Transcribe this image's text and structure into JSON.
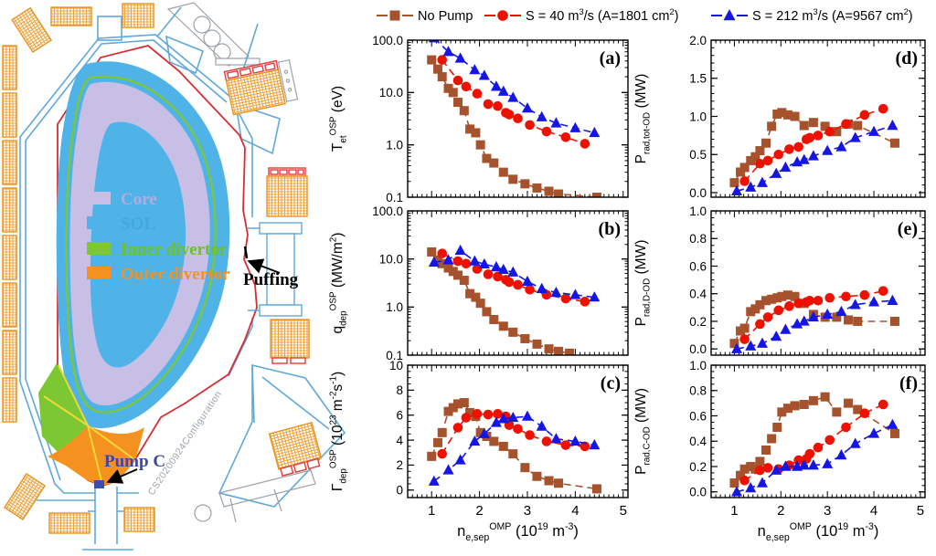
{
  "diagram": {
    "legend": [
      {
        "label": "Core",
        "color": "#C8BFE7",
        "text_color": "#B6A9DF"
      },
      {
        "label": "SOL",
        "color": "#4FB3E8",
        "text_color": "#3FA9E0"
      },
      {
        "label": "Inner divertor",
        "color": "#7DC832",
        "text_color": "#6CC226"
      },
      {
        "label": "Outer divertor",
        "color": "#F5921F",
        "text_color": "#F5921F"
      }
    ],
    "annotations": {
      "puffing": "Puffing",
      "pump": "Pump C",
      "watermark": "CS20200924Configuration"
    }
  },
  "series_legend": [
    {
      "name": "No Pump",
      "color": "#A5522D",
      "marker": "square"
    },
    {
      "name": "S = 40 m^{3}/s (A=1801 cm^{2})",
      "color": "#EE1100",
      "marker": "circle"
    },
    {
      "name": "S = 212 m^{3}/s (A=9567 cm^{2})",
      "color": "#1515E6",
      "marker": "triangle"
    }
  ],
  "xlabel": "n_{e,sep}^{OMP} (10^{19} m^{-3})",
  "xlim": [
    0.5,
    5.1
  ],
  "xticks": [
    1,
    2,
    3,
    4,
    5
  ],
  "xtick_labels": [
    "1",
    "2",
    "3",
    "4",
    "5"
  ],
  "chart_data": [
    {
      "id": "a",
      "panel": "(a)",
      "type": "scatter",
      "yscale": "log",
      "ylim": [
        0.1,
        100
      ],
      "yminor": 0,
      "ylabel": "T_{et}^{OSP} (eV)",
      "ytick_values": [
        100,
        10,
        1,
        0.1
      ],
      "ytick_labels": [
        "100.0",
        "10.0",
        "1.0",
        "0.1"
      ],
      "series": [
        {
          "name": "No Pump",
          "x": [
            1.0,
            1.13,
            1.22,
            1.35,
            1.45,
            1.55,
            1.68,
            1.8,
            1.92,
            2.02,
            2.15,
            2.3,
            2.5,
            2.7,
            2.95,
            3.2,
            3.45,
            3.65,
            4.45
          ],
          "y": [
            42,
            28,
            20,
            12,
            10,
            6.5,
            4.5,
            2.0,
            1.7,
            1.0,
            0.55,
            0.45,
            0.3,
            0.22,
            0.18,
            0.15,
            0.13,
            0.115,
            0.1
          ]
        },
        {
          "name": "S = 40 m^{3}/s (A=1801 cm^{2})",
          "x": [
            1.22,
            1.55,
            1.72,
            1.95,
            2.18,
            2.38,
            2.55,
            2.62,
            2.8,
            3.05,
            3.4,
            3.8,
            4.2
          ],
          "y": [
            42,
            17,
            13,
            9.5,
            6.0,
            5.5,
            4.1,
            3.8,
            3.2,
            2.4,
            1.8,
            1.4,
            1.05
          ]
        },
        {
          "name": "S = 212 m^{3}/s (A=9567 cm^{2})",
          "x": [
            1.05,
            1.35,
            1.6,
            1.9,
            2.1,
            2.35,
            2.5,
            2.7,
            3.0,
            3.3,
            3.6,
            4.0,
            4.4
          ],
          "y": [
            110,
            60,
            45,
            27,
            21,
            13,
            10.5,
            8.0,
            5.0,
            3.4,
            2.6,
            2.1,
            1.7
          ]
        }
      ]
    },
    {
      "id": "b",
      "panel": "(b)",
      "type": "scatter",
      "yscale": "log",
      "ylim": [
        0.1,
        100
      ],
      "yminor": 0,
      "ylabel": "q_{dep}^{OSP} (MW/m^{2})",
      "ytick_values": [
        100,
        10,
        1,
        0.1
      ],
      "ytick_labels": [
        "100.0",
        "10.0",
        "1.0",
        "0.1"
      ],
      "series": [
        {
          "name": "No Pump",
          "x": [
            1.0,
            1.13,
            1.22,
            1.35,
            1.45,
            1.55,
            1.68,
            1.8,
            1.92,
            2.02,
            2.15,
            2.3,
            2.5,
            2.7,
            2.95,
            3.2,
            3.45,
            3.65,
            3.88
          ],
          "y": [
            14,
            9.5,
            8.0,
            6.5,
            5.5,
            4.6,
            3.6,
            1.9,
            1.6,
            1.2,
            0.8,
            0.55,
            0.4,
            0.3,
            0.22,
            0.17,
            0.135,
            0.12,
            0.11
          ]
        },
        {
          "name": "S = 40 m^{3}/s (A=1801 cm^{2})",
          "x": [
            1.22,
            1.55,
            1.72,
            1.95,
            2.18,
            2.38,
            2.55,
            2.62,
            2.8,
            3.05,
            3.4,
            3.8,
            4.2
          ],
          "y": [
            13,
            9.0,
            8.0,
            6.2,
            4.8,
            4.3,
            3.7,
            3.3,
            2.9,
            2.3,
            1.8,
            1.5,
            1.3
          ]
        },
        {
          "name": "S = 212 m^{3}/s (A=9567 cm^{2})",
          "x": [
            1.05,
            1.35,
            1.6,
            1.9,
            2.1,
            2.35,
            2.5,
            2.7,
            3.0,
            3.3,
            3.6,
            4.0,
            4.4
          ],
          "y": [
            8.5,
            9.5,
            15,
            9.0,
            7.8,
            6.8,
            6.0,
            5.3,
            3.4,
            2.4,
            2.0,
            1.8,
            1.6
          ]
        }
      ]
    },
    {
      "id": "c",
      "panel": "(c)",
      "type": "scatter",
      "yscale": "linear",
      "ylim": [
        -0.6,
        10
      ],
      "yminor": 0.5,
      "ylabel": "Γ_{dep}^{OSP} (10^{23} m^{-2}s^{-1})",
      "ytick_values": [
        10,
        8,
        6,
        4,
        2,
        0
      ],
      "ytick_labels": [
        "10",
        "8",
        "6",
        "4",
        "2",
        "0"
      ],
      "series": [
        {
          "name": "No Pump",
          "x": [
            1.0,
            1.13,
            1.22,
            1.35,
            1.45,
            1.55,
            1.68,
            1.8,
            1.92,
            2.02,
            2.15,
            2.3,
            2.5,
            2.7,
            2.95,
            3.2,
            3.45,
            3.65,
            4.45
          ],
          "y": [
            2.7,
            3.8,
            4.6,
            6.3,
            6.6,
            6.9,
            7.0,
            6.2,
            5.9,
            4.6,
            4.3,
            3.9,
            3.5,
            2.9,
            1.8,
            1.1,
            0.75,
            0.55,
            0.1
          ]
        },
        {
          "name": "S = 40 m^{3}/s (A=1801 cm^{2})",
          "x": [
            1.22,
            1.55,
            1.72,
            1.95,
            2.18,
            2.38,
            2.55,
            2.62,
            2.8,
            3.05,
            3.4,
            3.8,
            4.2
          ],
          "y": [
            2.9,
            5.0,
            5.8,
            6.1,
            6.05,
            6.1,
            5.9,
            5.2,
            4.9,
            4.4,
            3.9,
            3.6,
            3.5
          ]
        },
        {
          "name": "S = 212 m^{3}/s (A=9567 cm^{2})",
          "x": [
            1.05,
            1.35,
            1.6,
            1.9,
            2.1,
            2.35,
            2.5,
            2.7,
            3.0,
            3.3,
            3.6,
            4.0,
            4.4
          ],
          "y": [
            0.7,
            1.6,
            2.4,
            3.9,
            4.5,
            5.4,
            5.7,
            5.8,
            5.9,
            5.1,
            4.1,
            3.9,
            3.6
          ]
        }
      ]
    },
    {
      "id": "d",
      "panel": "(d)",
      "type": "scatter",
      "yscale": "linear",
      "ylim": [
        -0.06,
        2.0
      ],
      "yminor": 0.1,
      "ylabel": "P_{rad,tot-OD} (MW)",
      "ytick_values": [
        2.0,
        1.5,
        1.0,
        0.5,
        0.0
      ],
      "ytick_labels": [
        "2.0",
        "1.5",
        "1.0",
        "0.5",
        "0.0"
      ],
      "series": [
        {
          "name": "No Pump",
          "x": [
            1.0,
            1.13,
            1.22,
            1.35,
            1.45,
            1.55,
            1.68,
            1.8,
            1.92,
            2.02,
            2.15,
            2.3,
            2.5,
            2.7,
            2.95,
            3.2,
            3.45,
            3.65,
            4.45
          ],
          "y": [
            0.13,
            0.27,
            0.33,
            0.42,
            0.47,
            0.55,
            0.65,
            0.87,
            1.03,
            1.05,
            1.02,
            1.0,
            0.88,
            0.92,
            0.87,
            0.8,
            0.9,
            0.88,
            0.65
          ]
        },
        {
          "name": "S = 40 m^{3}/s (A=1801 cm^{2})",
          "x": [
            1.22,
            1.55,
            1.72,
            1.95,
            2.18,
            2.38,
            2.55,
            2.62,
            2.8,
            3.05,
            3.4,
            3.8,
            4.2
          ],
          "y": [
            0.15,
            0.38,
            0.42,
            0.5,
            0.57,
            0.6,
            0.7,
            0.72,
            0.75,
            0.8,
            0.9,
            1.02,
            1.1
          ]
        },
        {
          "name": "S = 212 m^{3}/s (A=9567 cm^{2})",
          "x": [
            1.05,
            1.35,
            1.6,
            1.9,
            2.1,
            2.35,
            2.5,
            2.7,
            3.0,
            3.3,
            3.6,
            4.0,
            4.4
          ],
          "y": [
            0.02,
            0.07,
            0.13,
            0.25,
            0.33,
            0.4,
            0.43,
            0.48,
            0.55,
            0.6,
            0.72,
            0.8,
            0.88
          ]
        }
      ]
    },
    {
      "id": "e",
      "panel": "(e)",
      "type": "scatter",
      "yscale": "linear",
      "ylim": [
        -0.045,
        1.0
      ],
      "yminor": 0.05,
      "ylabel": "P_{rad,D-OD} (MW)",
      "ytick_values": [
        1.0,
        0.8,
        0.6,
        0.4,
        0.2,
        0.0
      ],
      "ytick_labels": [
        "1.0",
        "0.8",
        "0.6",
        "0.4",
        "0.2",
        "0.0"
      ],
      "series": [
        {
          "name": "No Pump",
          "x": [
            1.0,
            1.13,
            1.22,
            1.35,
            1.45,
            1.55,
            1.68,
            1.8,
            1.92,
            2.02,
            2.15,
            2.3,
            2.5,
            2.7,
            2.95,
            3.2,
            3.45,
            3.65,
            4.45
          ],
          "y": [
            0.04,
            0.13,
            0.15,
            0.27,
            0.29,
            0.32,
            0.35,
            0.36,
            0.37,
            0.38,
            0.39,
            0.38,
            0.33,
            0.25,
            0.23,
            0.23,
            0.21,
            0.2,
            0.2
          ]
        },
        {
          "name": "S = 40 m^{3}/s (A=1801 cm^{2})",
          "x": [
            1.22,
            1.55,
            1.72,
            1.95,
            2.18,
            2.38,
            2.55,
            2.62,
            2.8,
            3.05,
            3.4,
            3.8,
            4.2
          ],
          "y": [
            0.07,
            0.18,
            0.23,
            0.28,
            0.31,
            0.33,
            0.34,
            0.35,
            0.35,
            0.37,
            0.38,
            0.39,
            0.42
          ]
        },
        {
          "name": "S = 212 m^{3}/s (A=9567 cm^{2})",
          "x": [
            1.05,
            1.35,
            1.6,
            1.9,
            2.1,
            2.35,
            2.5,
            2.7,
            3.0,
            3.3,
            3.6,
            4.0,
            4.4
          ],
          "y": [
            0.0,
            0.02,
            0.04,
            0.09,
            0.14,
            0.18,
            0.2,
            0.23,
            0.25,
            0.27,
            0.32,
            0.34,
            0.35
          ]
        }
      ]
    },
    {
      "id": "f",
      "panel": "(f)",
      "type": "scatter",
      "yscale": "linear",
      "ylim": [
        -0.045,
        1.0
      ],
      "yminor": 0.05,
      "ylabel": "P_{rad,C-OD} (MW)",
      "ytick_values": [
        1.0,
        0.8,
        0.6,
        0.4,
        0.2,
        0.0
      ],
      "ytick_labels": [
        "1.0",
        "0.8",
        "0.6",
        "0.4",
        "0.2",
        "0.0"
      ],
      "series": [
        {
          "name": "No Pump",
          "x": [
            1.0,
            1.13,
            1.22,
            1.35,
            1.45,
            1.55,
            1.68,
            1.8,
            1.92,
            2.02,
            2.15,
            2.3,
            2.5,
            2.7,
            2.95,
            3.2,
            3.45,
            3.65,
            4.45
          ],
          "y": [
            0.07,
            0.13,
            0.18,
            0.2,
            0.18,
            0.24,
            0.33,
            0.42,
            0.51,
            0.63,
            0.66,
            0.68,
            0.69,
            0.72,
            0.75,
            0.63,
            0.7,
            0.65,
            0.46
          ]
        },
        {
          "name": "S = 40 m^{3}/s (A=1801 cm^{2})",
          "x": [
            1.22,
            1.55,
            1.72,
            1.95,
            2.18,
            2.38,
            2.55,
            2.62,
            2.8,
            3.05,
            3.4,
            3.8,
            4.2
          ],
          "y": [
            0.09,
            0.17,
            0.19,
            0.18,
            0.21,
            0.25,
            0.26,
            0.3,
            0.35,
            0.41,
            0.51,
            0.62,
            0.69
          ]
        },
        {
          "name": "S = 212 m^{3}/s (A=9567 cm^{2})",
          "x": [
            1.05,
            1.35,
            1.6,
            1.9,
            2.1,
            2.35,
            2.5,
            2.7,
            3.0,
            3.3,
            3.6,
            4.0,
            4.4
          ],
          "y": [
            0.0,
            0.03,
            0.07,
            0.17,
            0.2,
            0.2,
            0.21,
            0.21,
            0.22,
            0.29,
            0.38,
            0.46,
            0.53
          ]
        }
      ]
    }
  ]
}
